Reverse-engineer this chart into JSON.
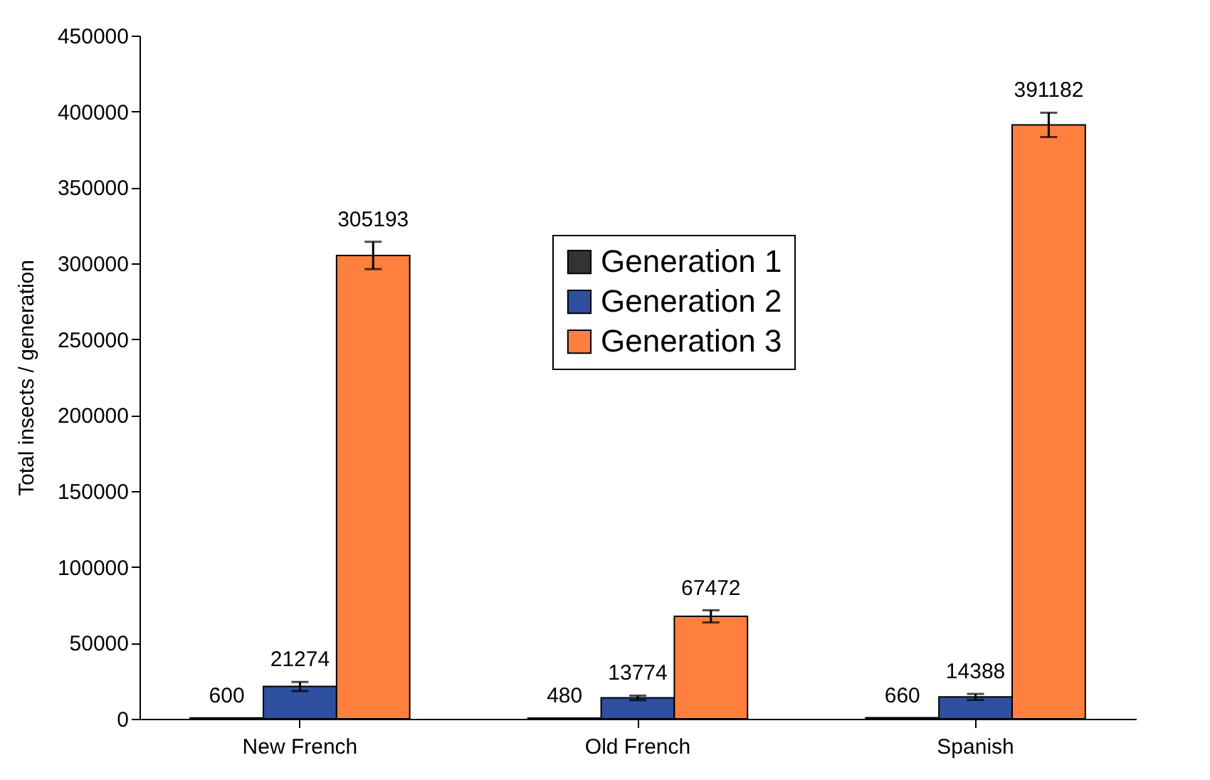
{
  "chart_data": {
    "type": "bar",
    "ylabel": "Total insects / generation",
    "categories": [
      "New French",
      "Old French",
      "Spanish"
    ],
    "series": [
      {
        "name": "Generation 1",
        "color": "#333333",
        "values": [
          600,
          480,
          660
        ],
        "errors": [
          null,
          null,
          null
        ]
      },
      {
        "name": "Generation 2",
        "color": "#2f4f9f",
        "values": [
          21274,
          13774,
          14388
        ],
        "errors": [
          3000,
          1500,
          2000
        ]
      },
      {
        "name": "Generation 3",
        "color": "#ff7f3f",
        "values": [
          305193,
          67472,
          391182
        ],
        "errors": [
          9000,
          4000,
          8000
        ]
      }
    ],
    "ylim": [
      0,
      450000
    ],
    "yticks": [
      0,
      50000,
      100000,
      150000,
      200000,
      250000,
      300000,
      350000,
      400000,
      450000
    ],
    "data_labels": true,
    "grid": false,
    "legend": "top"
  }
}
